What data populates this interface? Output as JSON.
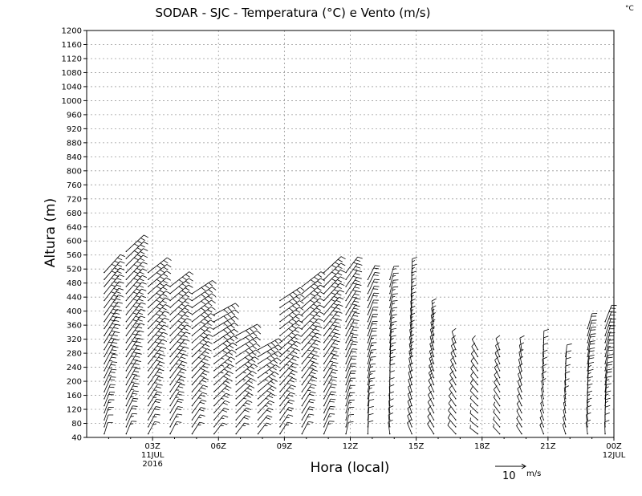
{
  "chart_data": {
    "type": "wind-barb",
    "title": "SODAR - SJC - Temperatura (°C) e Vento (m/s)",
    "unit_corner": "°C",
    "ylabel": "Altura (m)",
    "xlabel": "Hora (local)",
    "ylim": [
      40,
      1200
    ],
    "yticks": [
      40,
      80,
      120,
      160,
      200,
      240,
      280,
      320,
      360,
      400,
      440,
      480,
      520,
      560,
      600,
      640,
      680,
      720,
      760,
      800,
      840,
      880,
      920,
      960,
      1000,
      1040,
      1080,
      1120,
      1160,
      1200
    ],
    "xlim_hours": [
      0,
      24
    ],
    "xticks": [
      {
        "hour": 3,
        "label": "03Z",
        "sub1": "11JUL",
        "sub2": "2016"
      },
      {
        "hour": 6,
        "label": "06Z",
        "sub1": "",
        "sub2": ""
      },
      {
        "hour": 9,
        "label": "09Z",
        "sub1": "",
        "sub2": ""
      },
      {
        "hour": 12,
        "label": "12Z",
        "sub1": "",
        "sub2": ""
      },
      {
        "hour": 15,
        "label": "15Z",
        "sub1": "",
        "sub2": ""
      },
      {
        "hour": 18,
        "label": "18Z",
        "sub1": "",
        "sub2": ""
      },
      {
        "hour": 21,
        "label": "21Z",
        "sub1": "",
        "sub2": ""
      },
      {
        "hour": 24,
        "label": "00Z",
        "sub1": "12JUL",
        "sub2": ""
      }
    ],
    "reference_vector": {
      "value": 10,
      "label": "10",
      "unit": "m/s"
    },
    "wind_profiles": [
      {
        "hour": 0.8,
        "top_m": 520,
        "speed_low": 2,
        "speed_high": 9,
        "dir": 30
      },
      {
        "hour": 1.8,
        "top_m": 580,
        "speed_low": 3,
        "speed_high": 11,
        "dir": 35
      },
      {
        "hour": 2.8,
        "top_m": 520,
        "speed_low": 3,
        "speed_high": 10,
        "dir": 40
      },
      {
        "hour": 3.8,
        "top_m": 480,
        "speed_low": 3,
        "speed_high": 10,
        "dir": 40
      },
      {
        "hour": 4.8,
        "top_m": 460,
        "speed_low": 3,
        "speed_high": 9,
        "dir": 45
      },
      {
        "hour": 5.8,
        "top_m": 400,
        "speed_low": 3,
        "speed_high": 9,
        "dir": 50
      },
      {
        "hour": 6.8,
        "top_m": 340,
        "speed_low": 3,
        "speed_high": 9,
        "dir": 50
      },
      {
        "hour": 7.8,
        "top_m": 300,
        "speed_low": 3,
        "speed_high": 8,
        "dir": 50
      },
      {
        "hour": 8.8,
        "top_m": 440,
        "speed_low": 3,
        "speed_high": 9,
        "dir": 45
      },
      {
        "hour": 9.8,
        "top_m": 480,
        "speed_low": 3,
        "speed_high": 9,
        "dir": 40
      },
      {
        "hour": 10.8,
        "top_m": 520,
        "speed_low": 3,
        "speed_high": 8,
        "dir": 35
      },
      {
        "hour": 11.8,
        "top_m": 520,
        "speed_low": 2,
        "speed_high": 6,
        "dir": 25
      },
      {
        "hour": 12.8,
        "top_m": 500,
        "speed_low": 2,
        "speed_high": 4,
        "dir": 15
      },
      {
        "hour": 13.8,
        "top_m": 500,
        "speed_low": 2,
        "speed_high": 3,
        "dir": 5
      },
      {
        "hour": 14.8,
        "top_m": 520,
        "speed_low": 2,
        "speed_high": 3,
        "dir": 350
      },
      {
        "hour": 15.8,
        "top_m": 400,
        "speed_low": 2,
        "speed_high": 3,
        "dir": 340
      },
      {
        "hour": 16.8,
        "top_m": 320,
        "speed_low": 2,
        "speed_high": 2,
        "dir": 330
      },
      {
        "hour": 17.8,
        "top_m": 300,
        "speed_low": 1,
        "speed_high": 2,
        "dir": 320
      },
      {
        "hour": 18.8,
        "top_m": 300,
        "speed_low": 1,
        "speed_high": 2,
        "dir": 330
      },
      {
        "hour": 19.8,
        "top_m": 300,
        "speed_low": 1,
        "speed_high": 2,
        "dir": 340
      },
      {
        "hour": 20.8,
        "top_m": 320,
        "speed_low": 1,
        "speed_high": 2,
        "dir": 350
      },
      {
        "hour": 21.8,
        "top_m": 280,
        "speed_low": 1,
        "speed_high": 2,
        "dir": 355
      },
      {
        "hour": 22.8,
        "top_m": 360,
        "speed_low": 2,
        "speed_high": 4,
        "dir": 5
      },
      {
        "hour": 23.6,
        "top_m": 380,
        "speed_low": 2,
        "speed_high": 5,
        "dir": 10
      }
    ]
  }
}
